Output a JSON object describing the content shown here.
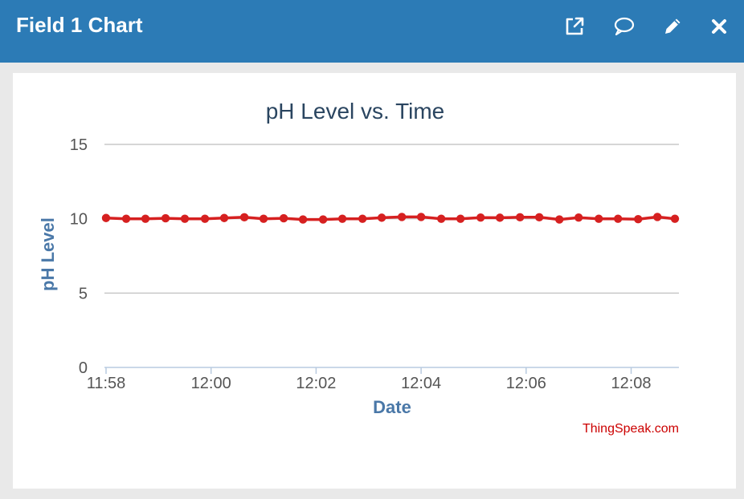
{
  "window": {
    "title": "Field 1 Chart",
    "actions": [
      {
        "name": "open-external",
        "icon": "external-link-icon"
      },
      {
        "name": "comment",
        "icon": "speech-bubble-icon"
      },
      {
        "name": "edit",
        "icon": "pencil-icon"
      },
      {
        "name": "close",
        "icon": "close-icon"
      }
    ],
    "colors": {
      "header": "#2c7bb6",
      "line": "#d62020",
      "title": "#2a4560",
      "axis_label": "#4a78a8",
      "credit": "#cc0000"
    }
  },
  "credit": "ThingSpeak.com",
  "chart_data": {
    "type": "line",
    "title": "pH Level vs. Time",
    "xlabel": "Date",
    "ylabel": "pH Level",
    "ylim": [
      0,
      15
    ],
    "yticks": [
      "0",
      "5",
      "10",
      "15"
    ],
    "xticks": [
      "11:58",
      "12:00",
      "12:02",
      "12:04",
      "12:06",
      "12:08"
    ],
    "xlim": [
      "11:58",
      "12:08:50"
    ],
    "grid": "horizontal",
    "legend": "none",
    "series": [
      {
        "x": [
          "11:58:00",
          "11:58:23",
          "11:58:45",
          "11:59:08",
          "11:59:30",
          "11:59:53",
          "12:00:15",
          "12:00:38",
          "12:01:00",
          "12:01:23",
          "12:01:45",
          "12:02:08",
          "12:02:30",
          "12:02:53",
          "12:03:15",
          "12:03:38",
          "12:04:00",
          "12:04:23",
          "12:04:45",
          "12:05:08",
          "12:05:30",
          "12:05:53",
          "12:06:15",
          "12:06:38",
          "12:07:00",
          "12:07:23",
          "12:07:45",
          "12:08:08",
          "12:08:30",
          "12:08:50"
        ],
        "y": [
          10.05,
          10.0,
          10.0,
          10.03,
          10.0,
          10.0,
          10.05,
          10.1,
          10.0,
          10.03,
          9.95,
          9.95,
          10.0,
          10.0,
          10.07,
          10.12,
          10.12,
          10.0,
          10.0,
          10.08,
          10.07,
          10.1,
          10.1,
          9.95,
          10.08,
          10.0,
          10.0,
          9.97,
          10.12,
          10.0
        ]
      }
    ]
  }
}
